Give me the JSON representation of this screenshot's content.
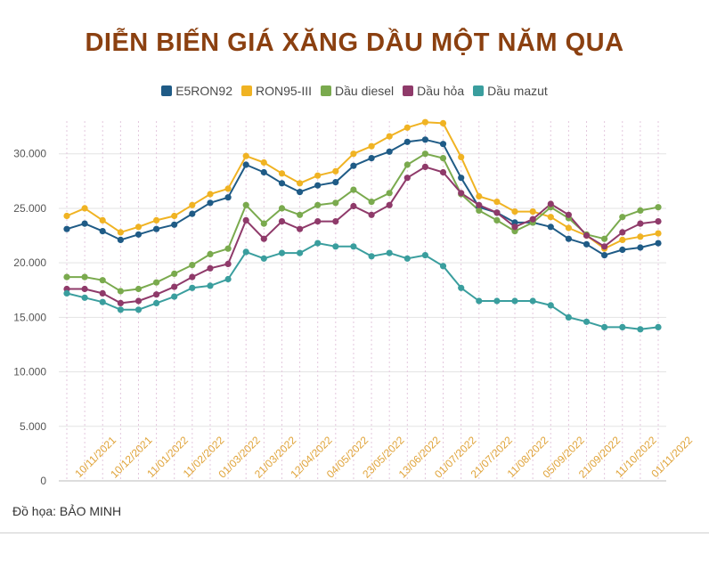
{
  "title": "DIỄN BIẾN GIÁ XĂNG DẦU MỘT NĂM QUA",
  "credit": "Đồ họa: BẢO MINH",
  "chart_data": {
    "type": "line",
    "title": "DIỄN BIẾN GIÁ XĂNG DẦU MỘT NĂM QUA",
    "xlabel": "",
    "ylabel": "",
    "ylim": [
      0,
      33000
    ],
    "yticks": [
      0,
      5000,
      10000,
      15000,
      20000,
      25000,
      30000
    ],
    "ytick_labels": [
      "0",
      "5.000",
      "10.000",
      "15.000",
      "20.000",
      "25.000",
      "30.000"
    ],
    "xtick_labels": [
      "10/11/2021",
      "10/12/2021",
      "11/01/2022",
      "11/02/2022",
      "01/03/2022",
      "21/03/2022",
      "12/04/2022",
      "04/05/2022",
      "23/05/2022",
      "13/06/2022",
      "01/07/2022",
      "21/07/2022",
      "11/08/2022",
      "05/09/2022",
      "21/09/2022",
      "11/10/2022",
      "01/11/2022"
    ],
    "grid": "vertical dashed",
    "legend_position": "top",
    "point_count": 34,
    "series": [
      {
        "name": "E5RON92",
        "color": "#1f5b86",
        "values": [
          23100,
          23600,
          22900,
          22100,
          22600,
          23100,
          23500,
          24500,
          25500,
          26000,
          29000,
          28300,
          27300,
          26500,
          27100,
          27400,
          28900,
          29600,
          30200,
          31100,
          31300,
          30900,
          27800,
          25100,
          24600,
          23700,
          23700,
          23300,
          22200,
          21700,
          20700,
          21200,
          21400,
          21800
        ]
      },
      {
        "name": "RON95-III",
        "color": "#f0b323",
        "values": [
          24300,
          25000,
          23900,
          22800,
          23300,
          23900,
          24300,
          25300,
          26300,
          26800,
          29800,
          29200,
          28200,
          27300,
          28000,
          28400,
          30000,
          30700,
          31600,
          32400,
          32900,
          32800,
          29700,
          26100,
          25600,
          24700,
          24700,
          24200,
          23200,
          22500,
          21300,
          22100,
          22400,
          22700
        ]
      },
      {
        "name": "Dầu diesel",
        "color": "#7aaa4e",
        "values": [
          18700,
          18700,
          18400,
          17400,
          17600,
          18200,
          19000,
          19800,
          20800,
          21300,
          25300,
          23600,
          25000,
          24400,
          25300,
          25500,
          26700,
          25600,
          26400,
          29000,
          30000,
          29600,
          26300,
          24800,
          23900,
          22900,
          23700,
          25100,
          24100,
          22600,
          22200,
          24200,
          24800,
          25100
        ]
      },
      {
        "name": "Dầu hỏa",
        "color": "#8f3a6a",
        "values": [
          17600,
          17600,
          17200,
          16300,
          16500,
          17100,
          17800,
          18700,
          19500,
          19900,
          23900,
          22200,
          23800,
          23100,
          23800,
          23800,
          25200,
          24400,
          25300,
          27800,
          28800,
          28300,
          26400,
          25300,
          24600,
          23300,
          24000,
          25400,
          24400,
          22500,
          21500,
          22800,
          23600,
          23800
        ]
      },
      {
        "name": "Dầu mazut",
        "color": "#3a9e9e",
        "values": [
          17200,
          16800,
          16400,
          15700,
          15700,
          16300,
          16900,
          17700,
          17900,
          18500,
          21000,
          20400,
          20900,
          20900,
          21800,
          21500,
          21500,
          20600,
          20900,
          20400,
          20700,
          19700,
          17700,
          16500,
          16500,
          16500,
          16500,
          16100,
          15000,
          14600,
          14100,
          14100,
          13900,
          14100
        ]
      }
    ]
  }
}
